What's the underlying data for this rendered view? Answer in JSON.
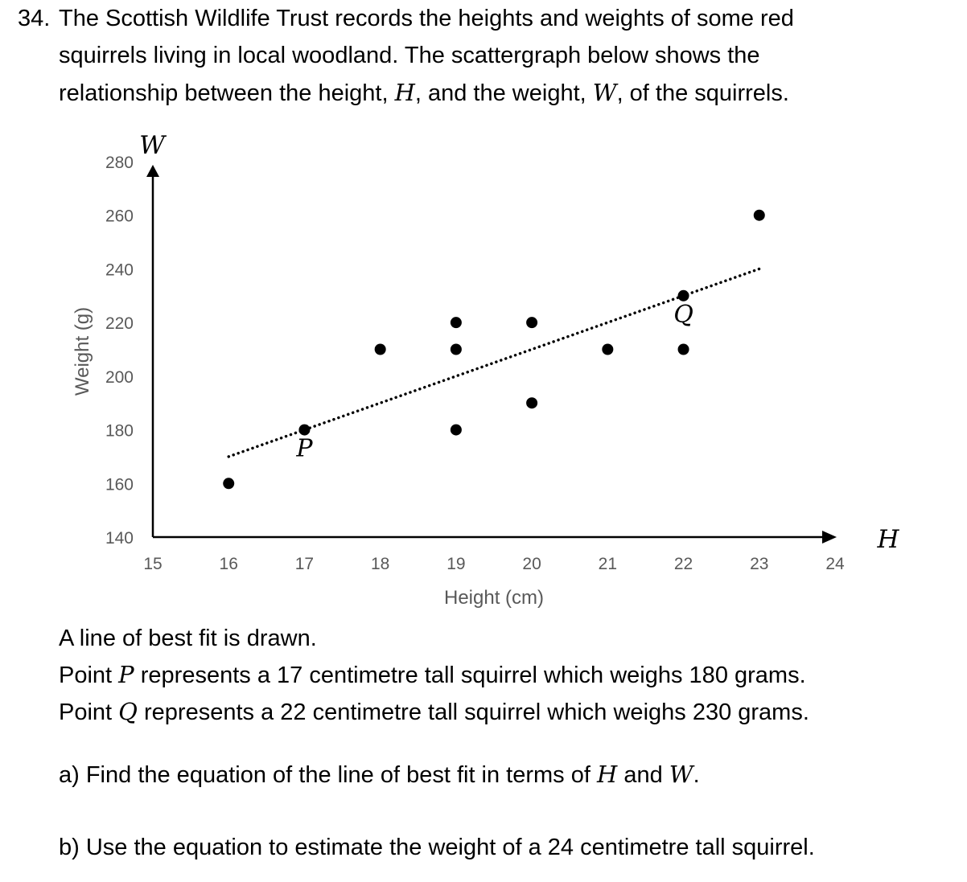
{
  "question": {
    "number": "34.",
    "stem_lines": [
      "The Scottish Wildlife Trust records the heights and weights of some red",
      "squirrels living in local woodland. The scattergraph below shows the"
    ],
    "stem_line3_a": "relationship between the height, ",
    "stem_line3_var1": "H",
    "stem_line3_b": ", and the weight, ",
    "stem_line3_var2": "W",
    "stem_line3_c": ", of the squirrels.",
    "best_fit_text": "A line of best fit is drawn.",
    "point_p_a": "Point ",
    "point_p_var": "P",
    "point_p_b": " represents a 17 centimetre tall squirrel which weighs 180 grams.",
    "point_q_a": "Point ",
    "point_q_var": "Q",
    "point_q_b": " represents a 22 centimetre tall squirrel which weighs 230 grams.",
    "part_a_a": "a) Find the equation of the line of best fit in terms of ",
    "part_a_var1": "H",
    "part_a_b": " and ",
    "part_a_var2": "W",
    "part_a_c": ".",
    "part_b": "b) Use the equation to estimate the weight of a 24 centimetre tall squirrel."
  },
  "chart_data": {
    "type": "scatter",
    "xlabel": "Height (cm)",
    "ylabel": "Weight (g)",
    "x_axis_symbol": "H",
    "y_axis_symbol": "W",
    "xlim": [
      15,
      24
    ],
    "ylim": [
      140,
      280
    ],
    "x_ticks": [
      15,
      16,
      17,
      18,
      19,
      20,
      21,
      22,
      23,
      24
    ],
    "y_ticks": [
      140,
      160,
      180,
      200,
      220,
      240,
      260,
      280
    ],
    "grid": false,
    "points": [
      {
        "x": 16,
        "y": 160
      },
      {
        "x": 17,
        "y": 180,
        "label": "P"
      },
      {
        "x": 18,
        "y": 210
      },
      {
        "x": 19,
        "y": 220
      },
      {
        "x": 19,
        "y": 210
      },
      {
        "x": 19,
        "y": 180
      },
      {
        "x": 20,
        "y": 220
      },
      {
        "x": 20,
        "y": 190
      },
      {
        "x": 21,
        "y": 210
      },
      {
        "x": 22,
        "y": 230,
        "label": "Q"
      },
      {
        "x": 22,
        "y": 210
      },
      {
        "x": 23,
        "y": 260
      }
    ],
    "best_fit_line": {
      "style": "dotted",
      "x": [
        16,
        23
      ],
      "y": [
        170,
        240
      ]
    },
    "colors": {
      "points": "#000000",
      "axes": "#000000",
      "tick_labels": "#595959"
    }
  }
}
